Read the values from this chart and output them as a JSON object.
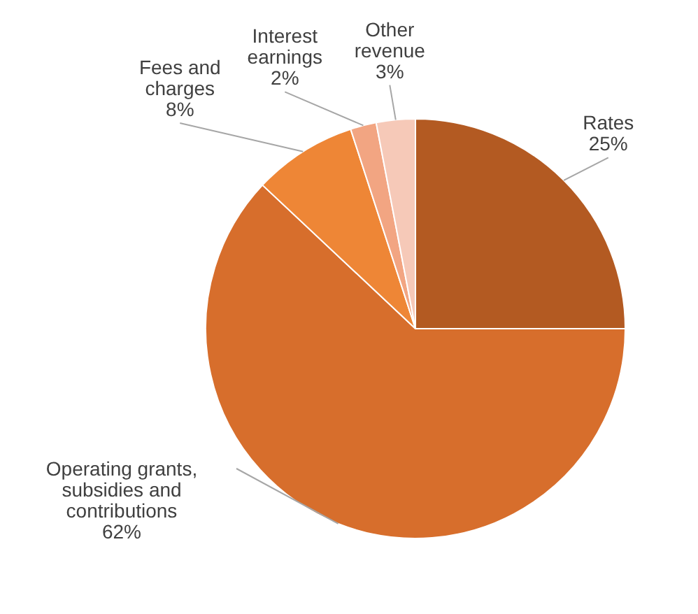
{
  "chart_data": {
    "type": "pie",
    "categories": [
      "Rates",
      "Operating grants, subsidies and contributions",
      "Fees and charges",
      "Interest earnings",
      "Other revenue"
    ],
    "values": [
      25,
      62,
      8,
      2,
      3
    ],
    "colors": [
      "#b35a22",
      "#d76e2c",
      "#ee8636",
      "#f2a582",
      "#f6c9b8"
    ],
    "value_labels": [
      "25%",
      "62%",
      "8%",
      "2%",
      "3%"
    ]
  }
}
